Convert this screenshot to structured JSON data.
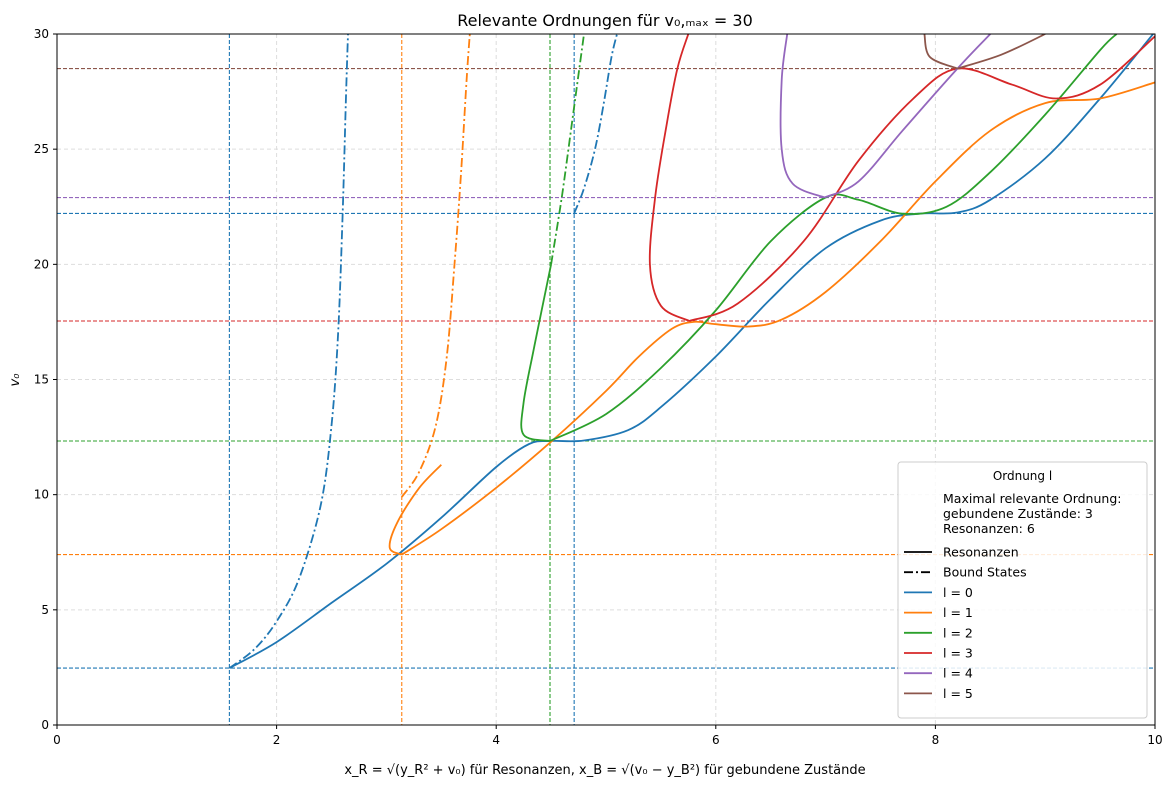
{
  "chart_data": {
    "type": "line",
    "title": "Relevante Ordnungen für v₀,ₘₐₓ = 30",
    "xlabel": "x_R = √(y_R² + v₀) für Resonanzen,  x_B = √(v₀ − y_B²) für gebundene Zustände",
    "ylabel": "v₀",
    "xlim": [
      0,
      10
    ],
    "ylim": [
      0,
      30
    ],
    "x_ticks": [
      "0",
      "2",
      "4",
      "6",
      "8",
      "10"
    ],
    "y_ticks": [
      "0",
      "5",
      "10",
      "15",
      "20",
      "25",
      "30"
    ],
    "grid": true,
    "legend": {
      "title": "Ordnung l",
      "placement": "lower-right",
      "note": [
        "Maximal relevante Ordnung:",
        "gebundene Zustände: 3",
        "Resonanzen: 6"
      ],
      "style_entries": [
        "Resonanzen",
        "Bound States"
      ],
      "series_entries": [
        "l = 0",
        "l = 1",
        "l = 2",
        "l = 3",
        "l = 4",
        "l = 5"
      ]
    },
    "colors": {
      "l0": "#1f77b4",
      "l1": "#ff7f0e",
      "l2": "#2ca02c",
      "l3": "#d62728",
      "l4": "#9467bd",
      "l5": "#8c564b"
    },
    "series": [
      {
        "name": "l = 0",
        "kind": "Resonanzen",
        "color": "#1f77b4",
        "points": [
          [
            1.57,
            2.47
          ],
          [
            2.0,
            3.6
          ],
          [
            2.5,
            5.3
          ],
          [
            3.0,
            7.0
          ],
          [
            3.5,
            9.0
          ],
          [
            4.0,
            11.2
          ],
          [
            4.3,
            12.2
          ],
          [
            4.5,
            12.33
          ],
          [
            4.8,
            12.35
          ],
          [
            5.2,
            12.8
          ],
          [
            5.5,
            13.8
          ],
          [
            6.0,
            16.0
          ],
          [
            6.5,
            18.5
          ],
          [
            7.0,
            20.7
          ],
          [
            7.5,
            21.9
          ],
          [
            7.85,
            22.2
          ],
          [
            8.2,
            22.25
          ],
          [
            8.5,
            22.8
          ],
          [
            9.0,
            24.6
          ],
          [
            9.5,
            27.2
          ],
          [
            10.0,
            30.1
          ]
        ]
      },
      {
        "name": "l = 0",
        "kind": "Bound States",
        "color": "#1f77b4",
        "points": [
          [
            1.57,
            2.47
          ],
          [
            1.8,
            3.3
          ],
          [
            2.0,
            4.5
          ],
          [
            2.2,
            6.3
          ],
          [
            2.4,
            9.5
          ],
          [
            2.5,
            13.0
          ],
          [
            2.56,
            17.0
          ],
          [
            2.6,
            22.0
          ],
          [
            2.63,
            27.0
          ],
          [
            2.65,
            30.0
          ]
        ]
      },
      {
        "name": "l = 0",
        "kind": "Bound States",
        "color": "#1f77b4",
        "points": [
          [
            4.71,
            22.21
          ],
          [
            4.8,
            23.3
          ],
          [
            4.9,
            25.0
          ],
          [
            4.98,
            27.0
          ],
          [
            5.05,
            29.0
          ],
          [
            5.1,
            30.0
          ]
        ]
      },
      {
        "name": "l = 1",
        "kind": "Resonanzen",
        "color": "#ff7f0e",
        "points": [
          [
            3.14,
            7.4
          ],
          [
            3.5,
            8.5
          ],
          [
            4.0,
            10.3
          ],
          [
            4.5,
            12.3
          ],
          [
            5.0,
            14.5
          ],
          [
            5.3,
            16.0
          ],
          [
            5.6,
            17.2
          ],
          [
            5.8,
            17.5
          ],
          [
            6.0,
            17.4
          ],
          [
            6.3,
            17.3
          ],
          [
            6.6,
            17.6
          ],
          [
            7.0,
            18.8
          ],
          [
            7.5,
            21.0
          ],
          [
            8.0,
            23.6
          ],
          [
            8.5,
            25.8
          ],
          [
            9.0,
            27.0
          ],
          [
            9.5,
            27.2
          ],
          [
            10.0,
            27.9
          ]
        ]
      },
      {
        "name": "l = 1",
        "kind": "Resonanzen",
        "color": "#ff7f0e",
        "points": [
          [
            3.14,
            7.4
          ],
          [
            3.03,
            7.7
          ],
          [
            3.1,
            8.8
          ],
          [
            3.3,
            10.3
          ],
          [
            3.5,
            11.3
          ]
        ]
      },
      {
        "name": "l = 1",
        "kind": "Bound States",
        "color": "#ff7f0e",
        "points": [
          [
            3.14,
            9.9
          ],
          [
            3.3,
            11.0
          ],
          [
            3.45,
            13.0
          ],
          [
            3.55,
            16.0
          ],
          [
            3.62,
            20.0
          ],
          [
            3.68,
            24.0
          ],
          [
            3.73,
            28.0
          ],
          [
            3.76,
            30.0
          ]
        ]
      },
      {
        "name": "l = 2",
        "kind": "Resonanzen",
        "color": "#2ca02c",
        "points": [
          [
            4.49,
            12.33
          ],
          [
            4.25,
            12.6
          ],
          [
            4.25,
            14.0
          ],
          [
            4.35,
            16.5
          ],
          [
            4.5,
            20.0
          ]
        ]
      },
      {
        "name": "l = 2",
        "kind": "Resonanzen",
        "color": "#2ca02c",
        "points": [
          [
            4.49,
            12.33
          ],
          [
            5.0,
            13.5
          ],
          [
            5.5,
            15.5
          ],
          [
            6.0,
            18.0
          ],
          [
            6.5,
            21.0
          ],
          [
            7.0,
            22.9
          ],
          [
            7.3,
            22.8
          ],
          [
            7.7,
            22.2
          ],
          [
            8.1,
            22.5
          ],
          [
            8.5,
            24.0
          ],
          [
            9.0,
            26.5
          ],
          [
            9.5,
            29.3
          ],
          [
            9.65,
            30.0
          ]
        ]
      },
      {
        "name": "l = 2",
        "kind": "Bound States",
        "color": "#2ca02c",
        "points": [
          [
            4.5,
            20.0
          ],
          [
            4.6,
            23.0
          ],
          [
            4.7,
            26.5
          ],
          [
            4.8,
            30.0
          ]
        ]
      },
      {
        "name": "l = 3",
        "kind": "Resonanzen",
        "color": "#d62728",
        "points": [
          [
            5.76,
            17.54
          ],
          [
            5.5,
            18.2
          ],
          [
            5.4,
            20.0
          ],
          [
            5.45,
            23.0
          ],
          [
            5.55,
            26.0
          ],
          [
            5.65,
            28.5
          ],
          [
            5.75,
            30.0
          ]
        ]
      },
      {
        "name": "l = 3",
        "kind": "Resonanzen",
        "color": "#d62728",
        "points": [
          [
            5.76,
            17.54
          ],
          [
            6.2,
            18.3
          ],
          [
            6.8,
            21.0
          ],
          [
            7.3,
            24.5
          ],
          [
            7.8,
            27.2
          ],
          [
            8.2,
            28.5
          ],
          [
            8.7,
            27.8
          ],
          [
            9.1,
            27.2
          ],
          [
            9.5,
            27.8
          ],
          [
            10.0,
            29.9
          ]
        ]
      },
      {
        "name": "l = 4",
        "kind": "Resonanzen",
        "color": "#9467bd",
        "points": [
          [
            6.99,
            22.9
          ],
          [
            6.7,
            23.5
          ],
          [
            6.6,
            25.0
          ],
          [
            6.6,
            28.0
          ],
          [
            6.65,
            30.0
          ]
        ]
      },
      {
        "name": "l = 4",
        "kind": "Resonanzen",
        "color": "#9467bd",
        "points": [
          [
            6.99,
            22.9
          ],
          [
            7.3,
            23.6
          ],
          [
            7.7,
            25.8
          ],
          [
            8.2,
            28.5
          ],
          [
            8.5,
            30.0
          ]
        ]
      },
      {
        "name": "l = 5",
        "kind": "Resonanzen",
        "color": "#8c564b",
        "points": [
          [
            8.2,
            28.5
          ],
          [
            7.95,
            29.0
          ],
          [
            7.9,
            30.0
          ]
        ]
      },
      {
        "name": "l = 5",
        "kind": "Resonanzen",
        "color": "#8c564b",
        "points": [
          [
            8.2,
            28.5
          ],
          [
            8.6,
            29.1
          ],
          [
            9.0,
            30.0
          ]
        ]
      }
    ],
    "hlines": [
      {
        "y": 2.47,
        "color": "#1f77b4"
      },
      {
        "y": 7.4,
        "color": "#ff7f0e"
      },
      {
        "y": 12.33,
        "color": "#2ca02c"
      },
      {
        "y": 17.54,
        "color": "#d62728"
      },
      {
        "y": 22.21,
        "color": "#1f77b4"
      },
      {
        "y": 22.9,
        "color": "#9467bd"
      },
      {
        "y": 28.5,
        "color": "#8c564b"
      }
    ],
    "vlines": [
      {
        "x": 1.57,
        "color": "#1f77b4"
      },
      {
        "x": 3.14,
        "color": "#ff7f0e"
      },
      {
        "x": 4.49,
        "color": "#2ca02c"
      },
      {
        "x": 4.71,
        "color": "#1f77b4"
      }
    ]
  }
}
